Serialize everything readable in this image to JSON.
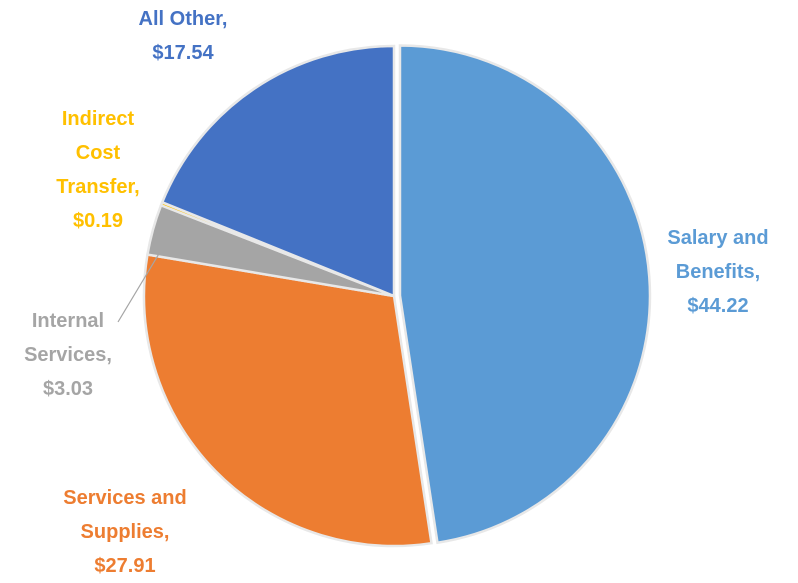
{
  "chart_data": {
    "type": "pie",
    "categories": [
      "Salary and Benefits",
      "Services and Supplies",
      "Internal Services",
      "Indirect Cost Transfer",
      "All Other"
    ],
    "values": [
      44.22,
      27.91,
      3.03,
      0.19,
      17.54
    ],
    "value_labels": [
      "Salary and Benefits, $44.22",
      "Services and Supplies, $27.91",
      "Internal Services, $3.03",
      "Indirect Cost Transfer, $0.19",
      "All Other, $17.54"
    ],
    "colors": [
      "#5b9bd5",
      "#ed7d31",
      "#a5a5a5",
      "#ffc000",
      "#4472c4"
    ]
  }
}
